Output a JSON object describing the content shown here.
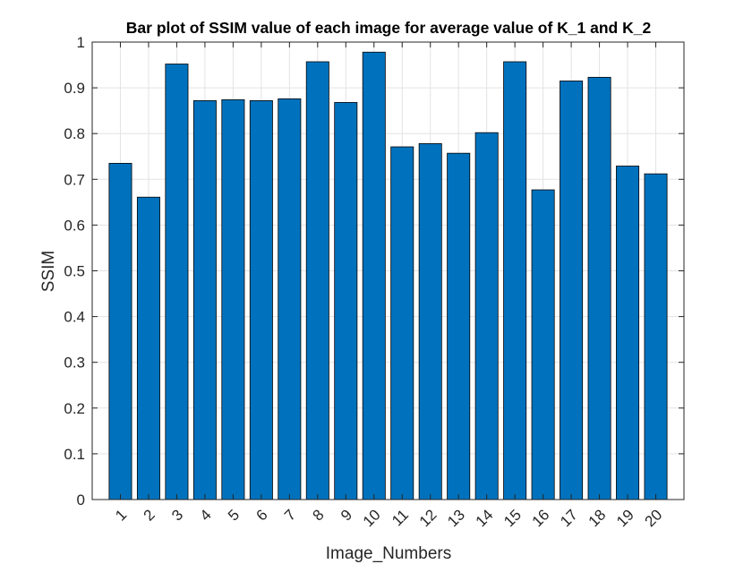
{
  "chart_data": {
    "type": "bar",
    "title": "Bar plot of SSIM value of each image for average value of K_1 and K_2",
    "xlabel": "Image_Numbers",
    "ylabel": "SSIM",
    "categories": [
      "1",
      "2",
      "3",
      "4",
      "5",
      "6",
      "7",
      "8",
      "9",
      "10",
      "11",
      "12",
      "13",
      "14",
      "15",
      "16",
      "17",
      "18",
      "19",
      "20"
    ],
    "values": [
      0.735,
      0.661,
      0.952,
      0.872,
      0.874,
      0.872,
      0.876,
      0.957,
      0.868,
      0.978,
      0.771,
      0.778,
      0.757,
      0.802,
      0.957,
      0.677,
      0.915,
      0.923,
      0.729,
      0.712
    ],
    "ylim": [
      0,
      1
    ],
    "yticks": [
      0,
      0.1,
      0.2,
      0.3,
      0.4,
      0.5,
      0.6,
      0.7,
      0.8,
      0.9,
      1
    ],
    "ytick_labels": [
      "0",
      "0.1",
      "0.2",
      "0.3",
      "0.4",
      "0.5",
      "0.6",
      "0.7",
      "0.8",
      "0.9",
      "1"
    ],
    "grid": true,
    "xtick_rotation": "diagonal",
    "colors": {
      "bar_fill": "#0072BD",
      "bar_edge": "#000000",
      "grid": "#e3e3e3",
      "axis": "#262626",
      "text": "#262626"
    }
  }
}
